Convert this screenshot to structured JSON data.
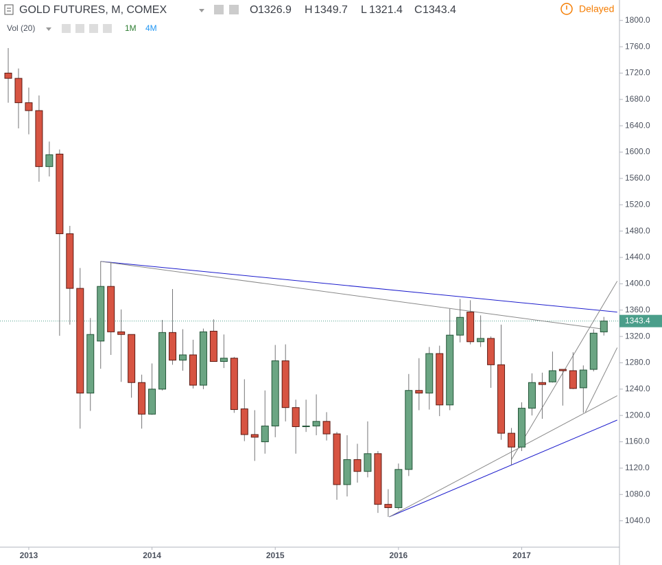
{
  "chart_data": {
    "type": "candlestick",
    "title": "GOLD FUTURES, M, COMEX",
    "status": "Delayed",
    "ohlc_labels": [
      "O",
      "H",
      "L",
      "C"
    ],
    "volume_label": "Vol (20)",
    "volume_legend": [
      {
        "text": "1M",
        "color": "#2e7d32"
      },
      {
        "text": "4M",
        "color": "#2196f3"
      }
    ],
    "categories": [
      null,
      null,
      "2013",
      null,
      null,
      null,
      null,
      null,
      null,
      null,
      null,
      null,
      null,
      null,
      "2014",
      null,
      null,
      null,
      null,
      null,
      null,
      null,
      null,
      null,
      null,
      null,
      "2015",
      null,
      null,
      null,
      null,
      null,
      null,
      null,
      null,
      null,
      null,
      null,
      "2016",
      null,
      null,
      null,
      null,
      null,
      null,
      null,
      null,
      null,
      null,
      null,
      "2017",
      null,
      null,
      null,
      null,
      null,
      null,
      null,
      null
    ],
    "open": [
      1720,
      1712,
      1675,
      1663,
      1578,
      1597,
      1476,
      1393,
      1234,
      1313,
      1396,
      1327,
      1323,
      1250,
      1202,
      1240,
      1326,
      1284,
      1292,
      1246,
      1328,
      1282,
      1287,
      1210,
      1171,
      1160,
      1184,
      1283,
      1212,
      1183,
      1184,
      1191,
      1172,
      1095,
      1133,
      1115,
      1142,
      1065,
      1060,
      1118,
      1238,
      1234,
      1294,
      1216,
      1322,
      1357,
      1312,
      1317,
      1277,
      1173,
      1152,
      1211,
      1250,
      1251,
      1270,
      1268,
      1242,
      1270,
      1326.9
    ],
    "high": [
      1758,
      1727,
      1698,
      1686,
      1616,
      1604,
      1488,
      1424,
      1348,
      1434,
      1433,
      1361,
      1323,
      1262,
      1279,
      1345,
      1392,
      1331,
      1315,
      1332,
      1346,
      1323,
      1289,
      1255,
      1208,
      1238,
      1307,
      1308,
      1224,
      1224,
      1232,
      1205,
      1175,
      1170,
      1157,
      1191,
      1146,
      1088,
      1127,
      1263,
      1287,
      1304,
      1306,
      1362,
      1377,
      1375,
      1352,
      1320,
      1338,
      1181,
      1220,
      1264,
      1265,
      1297,
      1270,
      1296,
      1276,
      1331,
      1349.7
    ],
    "low": [
      1675,
      1636,
      1627,
      1555,
      1563,
      1321,
      1338,
      1180,
      1207,
      1271,
      1292,
      1251,
      1227,
      1180,
      1201,
      1238,
      1277,
      1268,
      1241,
      1240,
      1282,
      1272,
      1204,
      1161,
      1131,
      1142,
      1167,
      1191,
      1142,
      1175,
      1170,
      1162,
      1072,
      1077,
      1098,
      1106,
      1052,
      1046,
      1057,
      1108,
      1208,
      1209,
      1199,
      1208,
      1311,
      1308,
      1304,
      1242,
      1163,
      1125,
      1146,
      1200,
      1195,
      1250,
      1215,
      1240,
      1204,
      1267,
      1321.4
    ],
    "close": [
      1712,
      1675,
      1663,
      1578,
      1596,
      1476,
      1393,
      1234,
      1323,
      1396,
      1327,
      1323,
      1250,
      1202,
      1240,
      1326,
      1284,
      1292,
      1246,
      1327,
      1282,
      1287,
      1209,
      1171,
      1167,
      1184,
      1283,
      1212,
      1183,
      1184,
      1191,
      1172,
      1095,
      1133,
      1115,
      1142,
      1065,
      1060,
      1118,
      1238,
      1234,
      1294,
      1216,
      1322,
      1349,
      1312,
      1317,
      1277,
      1173,
      1152,
      1211,
      1250,
      1247,
      1268,
      1268,
      1241,
      1269,
      1325,
      1343.4
    ],
    "up_color": "#6ba583",
    "down_color": "#d75442",
    "last_price_color": "#4a9e8a",
    "ylim": [
      1000,
      1831
    ],
    "yticks": [
      {
        "value": 1040,
        "label": "1040.0"
      },
      {
        "value": 1080,
        "label": "1080.0"
      },
      {
        "value": 1120,
        "label": "1120.0"
      },
      {
        "value": 1160,
        "label": "1160.0"
      },
      {
        "value": 1200,
        "label": "1200.0"
      },
      {
        "value": 1240,
        "label": "1240.0"
      },
      {
        "value": 1280,
        "label": "1280.0"
      },
      {
        "value": 1320,
        "label": "1320.0"
      },
      {
        "value": 1360,
        "label": "1360.0"
      },
      {
        "value": 1400,
        "label": "1400.0"
      },
      {
        "value": 1440,
        "label": "1440.0"
      },
      {
        "value": 1480,
        "label": "1480.0"
      },
      {
        "value": 1520,
        "label": "1520.0"
      },
      {
        "value": 1560,
        "label": "1560.0"
      },
      {
        "value": 1600,
        "label": "1600.0"
      },
      {
        "value": 1640,
        "label": "1640.0"
      },
      {
        "value": 1680,
        "label": "1680.0"
      },
      {
        "value": 1720,
        "label": "1720.0"
      },
      {
        "value": 1760,
        "label": "1760.0"
      },
      {
        "value": 1800,
        "label": "1800.0"
      }
    ],
    "trendlines": [
      {
        "color": "#1a1acc",
        "points": [
          [
            9,
            1434
          ],
          [
            59.3,
            1357
          ]
        ]
      },
      {
        "color": "#888888",
        "points": [
          [
            9,
            1434
          ],
          [
            58,
            1331
          ]
        ]
      },
      {
        "color": "#1a1acc",
        "points": [
          [
            37.1,
            1046
          ],
          [
            59.3,
            1193
          ]
        ]
      },
      {
        "color": "#888888",
        "points": [
          [
            37.1,
            1046
          ],
          [
            59.3,
            1230
          ]
        ]
      },
      {
        "color": "#888888",
        "points": [
          [
            49,
            1133
          ],
          [
            59.3,
            1404
          ]
        ]
      },
      {
        "color": "#888888",
        "points": [
          [
            56.2,
            1205
          ],
          [
            59.3,
            1303
          ]
        ]
      }
    ]
  }
}
